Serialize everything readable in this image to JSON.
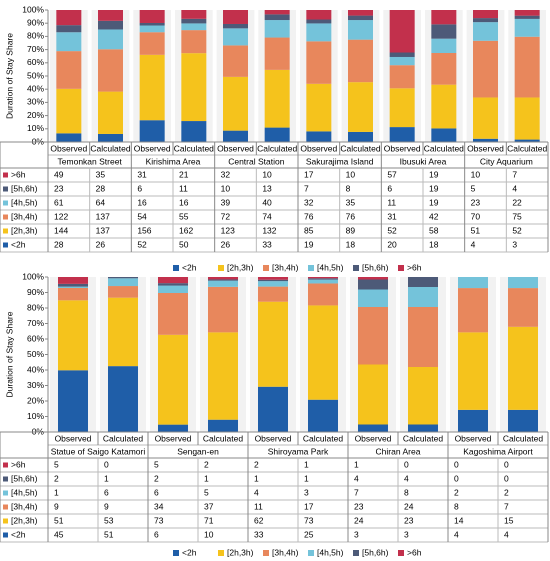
{
  "chart_data": [
    {
      "type": "stacked_bar_100",
      "ylabel": "Duration of Stay Share",
      "ylim": [
        0,
        100
      ],
      "yticks": [
        {
          "value": 0,
          "label": "0%"
        },
        {
          "value": 10,
          "label": "10%"
        },
        {
          "value": 20,
          "label": "20%"
        },
        {
          "value": 30,
          "label": "30%"
        },
        {
          "value": 40,
          "label": "40%"
        },
        {
          "value": 50,
          "label": "50%"
        },
        {
          "value": 60,
          "label": "60%"
        },
        {
          "value": 70,
          "label": "70%"
        },
        {
          "value": 80,
          "label": "80%"
        },
        {
          "value": 90,
          "label": "90%"
        },
        {
          "value": 100,
          "label": "100%"
        }
      ],
      "groups": [
        "Temonkan Street",
        "Kirishima Area",
        "Central Station",
        "Sakurajima Island",
        "Ibusuki Area",
        "City Aquarium"
      ],
      "categories": [
        "Observed",
        "Calculated",
        "Observed",
        "Calculated",
        "Observed",
        "Calculated",
        "Observed",
        "Calculated",
        "Observed",
        "Calculated",
        "Observed",
        "Calculated"
      ],
      "series": [
        {
          "name": "<2h",
          "color": "#1f5ea8",
          "values": [
            28,
            26,
            52,
            50,
            26,
            33,
            19,
            18,
            20,
            18,
            4,
            3
          ]
        },
        {
          "name": "[2h,3h)",
          "color": "#f5c31c",
          "values": [
            144,
            137,
            156,
            162,
            123,
            132,
            85,
            89,
            52,
            58,
            51,
            52
          ]
        },
        {
          "name": "[3h,4h)",
          "color": "#e8875c",
          "values": [
            122,
            137,
            54,
            55,
            72,
            74,
            76,
            76,
            31,
            42,
            70,
            75
          ]
        },
        {
          "name": "[4h,5h)",
          "color": "#74c3da",
          "values": [
            61,
            64,
            16,
            16,
            39,
            40,
            32,
            35,
            11,
            19,
            23,
            22
          ]
        },
        {
          "name": "[5h,6h)",
          "color": "#4d5a78",
          "values": [
            23,
            28,
            6,
            11,
            10,
            13,
            7,
            8,
            6,
            19,
            5,
            4
          ]
        },
        {
          "name": ">6h",
          "color": "#c2304c",
          "values": [
            49,
            35,
            31,
            21,
            32,
            10,
            17,
            10,
            57,
            19,
            10,
            7
          ]
        }
      ]
    },
    {
      "type": "stacked_bar_100",
      "ylabel": "Duration of Stay Share",
      "ylim": [
        0,
        100
      ],
      "yticks": [
        {
          "value": 0,
          "label": "0%"
        },
        {
          "value": 10,
          "label": "10%"
        },
        {
          "value": 20,
          "label": "20%"
        },
        {
          "value": 30,
          "label": "30%"
        },
        {
          "value": 40,
          "label": "40%"
        },
        {
          "value": 50,
          "label": "50%"
        },
        {
          "value": 60,
          "label": "60%"
        },
        {
          "value": 70,
          "label": "70%"
        },
        {
          "value": 80,
          "label": "80%"
        },
        {
          "value": 90,
          "label": "90%"
        },
        {
          "value": 100,
          "label": "100%"
        }
      ],
      "groups": [
        "Statue of Saigo Katamori",
        "Sengan-en",
        "Shiroyama Park",
        "Chiran Area",
        "Kagoshima Airport"
      ],
      "categories": [
        "Observed",
        "Calculated",
        "Observed",
        "Calculated",
        "Observed",
        "Calculated",
        "Observed",
        "Calculated",
        "Observed",
        "Calculated"
      ],
      "series": [
        {
          "name": "<2h",
          "color": "#1f5ea8",
          "values": [
            45,
            51,
            6,
            10,
            33,
            25,
            3,
            3,
            4,
            4
          ]
        },
        {
          "name": "[2h,3h)",
          "color": "#f5c31c",
          "values": [
            51,
            53,
            73,
            71,
            62,
            73,
            24,
            23,
            14,
            15
          ]
        },
        {
          "name": "[3h,4h)",
          "color": "#e8875c",
          "values": [
            9,
            9,
            34,
            37,
            11,
            17,
            23,
            24,
            8,
            7
          ]
        },
        {
          "name": "[4h,5h)",
          "color": "#74c3da",
          "values": [
            1,
            6,
            6,
            5,
            4,
            3,
            7,
            8,
            2,
            2
          ]
        },
        {
          "name": "[5h,6h)",
          "color": "#4d5a78",
          "values": [
            2,
            1,
            2,
            1,
            1,
            1,
            4,
            4,
            0,
            0
          ]
        },
        {
          "name": ">6h",
          "color": "#c2304c",
          "values": [
            5,
            0,
            5,
            2,
            2,
            1,
            1,
            0,
            0,
            0
          ]
        }
      ]
    }
  ]
}
